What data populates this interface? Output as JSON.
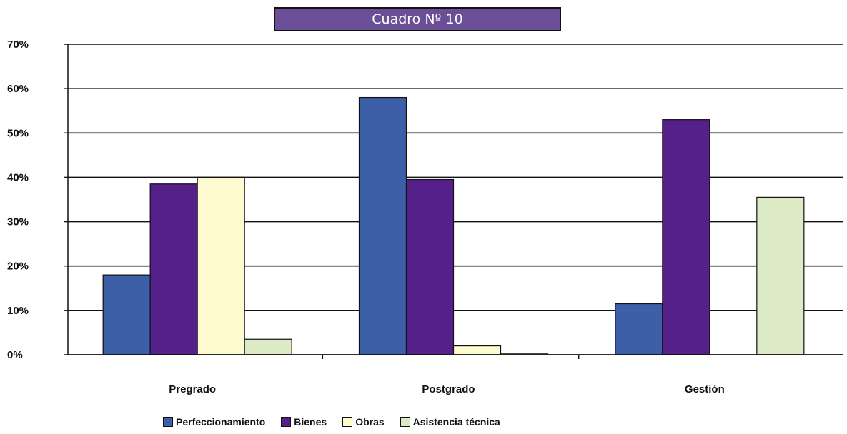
{
  "title": "Cuadro Nº 10",
  "chart_data": {
    "type": "bar",
    "title": "Cuadro Nº 10",
    "xlabel": "",
    "ylabel": "",
    "categories": [
      "Pregrado",
      "Postgrado",
      "Gestión"
    ],
    "ylim": [
      0,
      70
    ],
    "yticks": [
      "0%",
      "10%",
      "20%",
      "30%",
      "40%",
      "50%",
      "60%",
      "70%"
    ],
    "grid": true,
    "legend_position": "bottom",
    "series": [
      {
        "name": "Perfeccionamiento",
        "color": "#3c5fa8",
        "values": [
          18,
          58,
          11.5
        ]
      },
      {
        "name": "Bienes",
        "color": "#55208a",
        "values": [
          38.5,
          39.5,
          53
        ]
      },
      {
        "name": "Obras",
        "color": "#fffbd0",
        "values": [
          40,
          2,
          0
        ]
      },
      {
        "name": "Asistencia técnica",
        "color": "#dcebc5",
        "values": [
          3.5,
          0.3,
          35.5
        ]
      }
    ]
  }
}
